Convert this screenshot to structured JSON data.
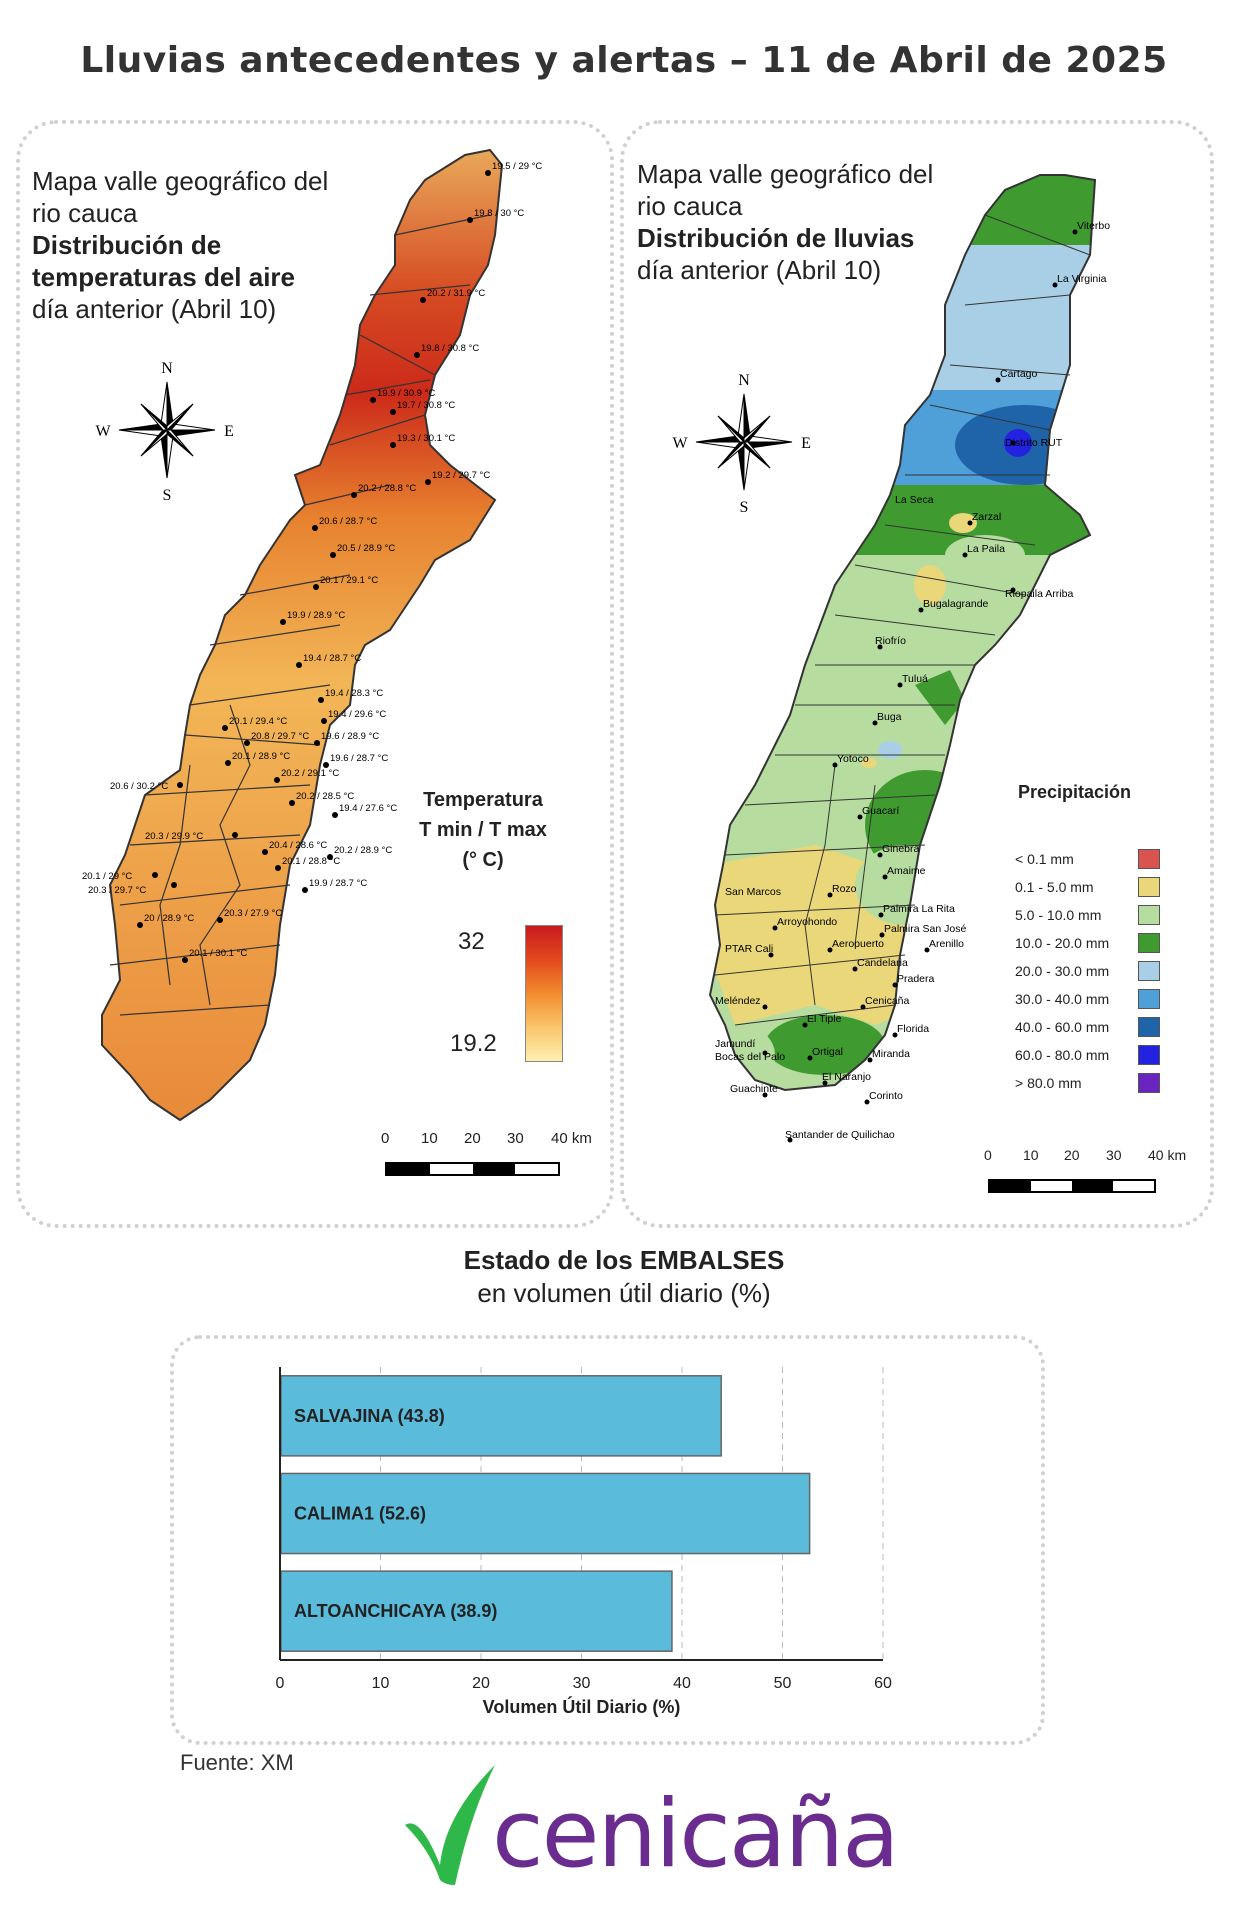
{
  "title": "Lluvias antecedentes y alertas – 11 de Abril de 2025",
  "temp_panel": {
    "title_line1": "Mapa valle geográfico del",
    "title_line2": "rio cauca",
    "title_line3": "Distribución de",
    "title_line4": "temperaturas del aire",
    "subtitle": "día anterior (Abril 10)",
    "legend_title_1": "Temperatura",
    "legend_title_2": "T min / T max",
    "legend_title_3": "(° C)",
    "legend_max": "32",
    "legend_min": "19.2",
    "scale_labels": [
      "0",
      "10",
      "20",
      "30",
      "40 km"
    ],
    "stations": [
      "19.5 / 29 °C",
      "19.8 / 30 °C",
      "20.2 / 31.9 °C",
      "19.8 / 30.8 °C",
      "19.9 / 30.9 °C",
      "19.7 / 30.8 °C",
      "19.3 / 30.1 °C",
      "19.2 / 29.7 °C",
      "20.2 / 28.8 °C",
      "20.6 / 28.7 °C",
      "20.5 / 28.9 °C",
      "20.1 / 29.1 °C",
      "19.9 / 28.9 °C",
      "19.4 / 28.7 °C",
      "19.4 / 28.3 °C",
      "19.4 / 29.6 °C",
      "20.1 / 29.4 °C",
      "20.8 / 29.7 °C",
      "19.6 / 28.9 °C",
      "20.1 / 28.9 °C",
      "19.6 / 28.7 °C",
      "20.6 / 30.2 °C",
      "20.2 / 29.1 °C",
      "20.2 / 28.5 °C",
      "19.4 / 27.6 °C",
      "20.3 / 29.9 °C",
      "20.4 / 28.6 °C",
      "20.2 / 28.9 °C",
      "20.1 / 29 °C",
      "20.1 / 28.8 °C",
      "20.3 / 29.7 °C",
      "19.9 / 28.7 °C",
      "20 / 28.9 °C",
      "20.3 / 27.9 °C",
      "20.1 / 30.1 °C"
    ]
  },
  "rain_panel": {
    "title_line1": "Mapa valle geográfico del",
    "title_line2": "rio cauca",
    "title_line3": "Distribución de lluvias",
    "subtitle": "día anterior (Abril 10)",
    "legend_title": "Precipitación",
    "legend": [
      {
        "label": "< 0.1 mm",
        "color": "#d9534f"
      },
      {
        "label": "0.1 - 5.0 mm",
        "color": "#ead77a"
      },
      {
        "label": "5.0 - 10.0 mm",
        "color": "#b6dca0"
      },
      {
        "label": "10.0 - 20.0 mm",
        "color": "#3f9b2f"
      },
      {
        "label": "20.0 - 30.0 mm",
        "color": "#a9cfe6"
      },
      {
        "label": "30.0 - 40.0 mm",
        "color": "#4f9fd8"
      },
      {
        "label": "40.0 - 60.0 mm",
        "color": "#1f63a8"
      },
      {
        "label": "60.0 - 80.0 mm",
        "color": "#2222e0"
      },
      {
        "label": "> 80.0 mm",
        "color": "#6a24c0"
      }
    ],
    "scale_labels": [
      "0",
      "10",
      "20",
      "30",
      "40 km"
    ],
    "places": [
      "Viterbo",
      "La Virginia",
      "Cartago",
      "Distrito RUT",
      "La Seca",
      "Zarzal",
      "La Paila",
      "Riopaila Arriba",
      "Bugalagrande",
      "Riofrío",
      "Tuluá",
      "Buga",
      "Yotoco",
      "Guacarí",
      "Ginebra",
      "Amaime",
      "San Marcos",
      "Rozo",
      "Palmira La Rita",
      "Arroyohondo",
      "Palmira San José",
      "Aeropuerto",
      "Arenillo",
      "PTAR Cali",
      "Candelaria",
      "Pradera",
      "Meléndez",
      "Cenicaña",
      "El Tiple",
      "Florida",
      "Jamundí",
      "Ortigal",
      "Miranda",
      "Bocas del Palo",
      "El Naranjo",
      "Guachinte",
      "Corinto",
      "Santander de Quilichao"
    ]
  },
  "compass": {
    "n": "N",
    "s": "S",
    "e": "E",
    "w": "W"
  },
  "embalses": {
    "title": "Estado de los EMBALSES",
    "subtitle": "en volumen útil diario (%)",
    "xlabel": "Volumen Útil Diario (%)",
    "bar_color": "#5bbbdb"
  },
  "chart_data": {
    "type": "bar",
    "orientation": "horizontal",
    "title": "Estado de los EMBALSES",
    "categories": [
      "SALVAJINA",
      "CALIMA1",
      "ALTOANCHICAYA"
    ],
    "bar_labels": [
      "SALVAJINA (43.8)",
      "CALIMA1 (52.6)",
      "ALTOANCHICAYA (38.9)"
    ],
    "values": [
      43.8,
      52.6,
      38.9
    ],
    "xlabel": "Volumen Útil Diario (%)",
    "xlim": [
      0,
      60
    ],
    "xticks": [
      "0",
      "10",
      "20",
      "30",
      "40",
      "50",
      "60"
    ],
    "grid": true
  },
  "source": "Fuente: XM",
  "logo": {
    "text": "cenicaña"
  }
}
